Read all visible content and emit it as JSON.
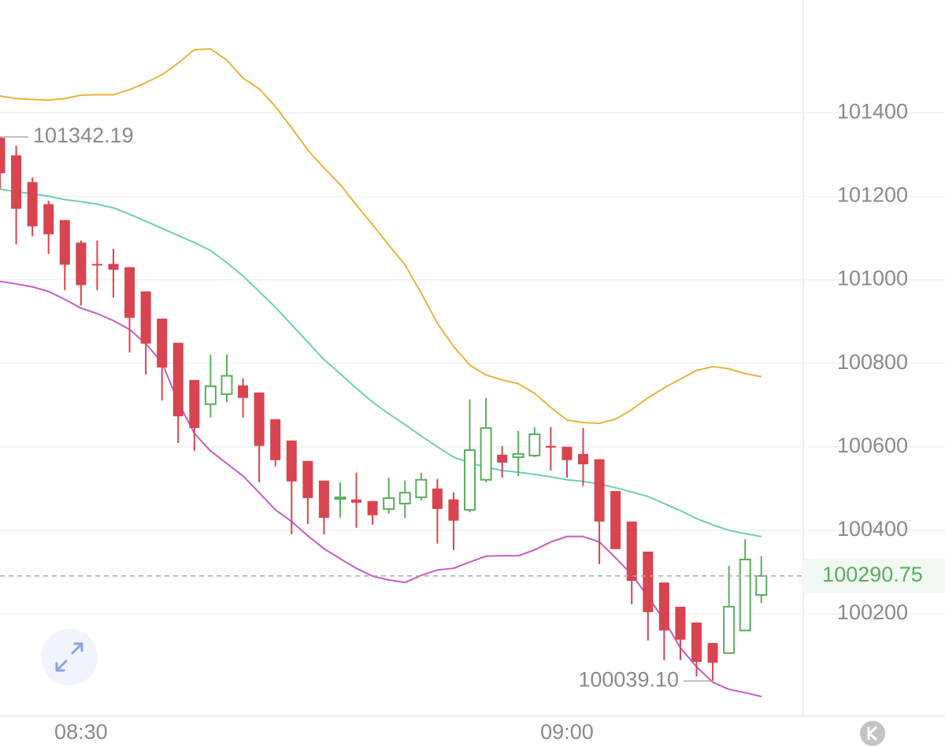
{
  "chart_data": {
    "type": "candlestick",
    "categories": [
      null,
      null,
      null,
      null,
      null,
      "08:30",
      null,
      null,
      null,
      null,
      null,
      null,
      null,
      null,
      null,
      null,
      null,
      null,
      null,
      null,
      null,
      null,
      null,
      null,
      null,
      null,
      null,
      null,
      null,
      null,
      null,
      null,
      null,
      null,
      null,
      "09:00",
      null,
      null,
      null,
      null,
      null,
      null,
      null,
      null,
      null,
      null,
      null,
      null
    ],
    "open": [
      101340,
      101298,
      101234,
      101181,
      101143,
      101089,
      101038,
      101038,
      101030,
      100972,
      100907,
      100849,
      100760,
      100702,
      100726,
      100747,
      100730,
      100666,
      100615,
      100566,
      100519,
      100477,
      100474,
      100470,
      100451,
      100464,
      100479,
      100500,
      100474,
      100449,
      100521,
      100581,
      100575,
      100579,
      100602,
      100600,
      100583,
      100570,
      100494,
      100421,
      100349,
      100275,
      100217,
      100179,
      100130,
      100106,
      100160,
      100245
    ],
    "high": [
      101342.19,
      101321,
      101245,
      101189,
      101143,
      101094,
      101094,
      101074,
      101030,
      100972,
      100907,
      100849,
      100760,
      100821,
      100821,
      100764,
      100730,
      100666,
      100615,
      100566,
      100519,
      100515,
      100538,
      100470,
      100526,
      100519,
      100538,
      100523,
      100491,
      100713,
      100717,
      100602,
      100638,
      100647,
      100647,
      100600,
      100645,
      100570,
      100494,
      100421,
      100349,
      100275,
      100217,
      100179,
      100130,
      100315,
      100379,
      100338
    ],
    "low": [
      101217,
      101085,
      101104,
      101062,
      100975,
      100938,
      100975,
      100957,
      100826,
      100773,
      100711,
      100609,
      100590,
      100670,
      100707,
      100670,
      100515,
      100553,
      100390,
      100415,
      100390,
      100430,
      100406,
      100413,
      100440,
      100430,
      100472,
      100368,
      100353,
      100443,
      100515,
      100526,
      100530,
      100575,
      100543,
      100526,
      100506,
      100319,
      100355,
      100223,
      100136,
      100089,
      100089,
      100050,
      100039.1,
      100106,
      100160,
      100226
    ],
    "close": [
      101255,
      101170,
      101128,
      101109,
      101036,
      100987,
      101036,
      101024,
      100909,
      100847,
      100790,
      100673,
      100645,
      100745,
      100770,
      100717,
      100602,
      100568,
      100517,
      100477,
      100430,
      100479,
      100466,
      100436,
      100477,
      100490,
      100521,
      100451,
      100423,
      100592,
      100645,
      100562,
      100583,
      100630,
      100598,
      100568,
      100558,
      100421,
      100355,
      100279,
      100204,
      100160,
      100138,
      100085,
      100083,
      100217,
      100330,
      100290.75
    ],
    "high_label": "101342.19",
    "low_label": "100039.10",
    "up_color": "#5aad5e",
    "down_color": "#d8444f",
    "bands": [
      {
        "color": "#e8b43c",
        "values": [
          101440,
          101434,
          101432,
          101430,
          101434,
          101442,
          101443,
          101443,
          101455,
          101472,
          101491,
          101519,
          101551,
          101553,
          101526,
          101483,
          101457,
          101415,
          101364,
          101311,
          101268,
          101228,
          101179,
          101132,
          101083,
          101036,
          100968,
          100896,
          100840,
          100796,
          100772,
          100760,
          100751,
          100728,
          100694,
          100664,
          100658,
          100656,
          100666,
          100689,
          100717,
          100741,
          100762,
          100783,
          100792,
          100787,
          100775,
          100768
        ]
      },
      {
        "color": "#6fd0b0",
        "values": [
          101217,
          101211,
          101206,
          101200,
          101192,
          101187,
          101181,
          101172,
          101157,
          101140,
          101123,
          101106,
          101089,
          101070,
          101041,
          101009,
          100972,
          100934,
          100892,
          100851,
          100809,
          100775,
          100740,
          100707,
          100679,
          100653,
          100626,
          100600,
          100575,
          100562,
          100551,
          100543,
          100539,
          100534,
          100528,
          100521,
          100517,
          100511,
          100502,
          100492,
          100481,
          100464,
          100447,
          100428,
          100413,
          100400,
          100392,
          100385
        ]
      },
      {
        "color": "#c85cc0",
        "values": [
          100996,
          100990,
          100983,
          100972,
          100953,
          100932,
          100919,
          100902,
          100881,
          100847,
          100802,
          100707,
          100632,
          100590,
          100560,
          100530,
          100490,
          100449,
          100421,
          100387,
          100356,
          100332,
          100309,
          100290,
          100281,
          100275,
          100292,
          100305,
          100309,
          100324,
          100338,
          100339,
          100339,
          100353,
          100372,
          100385,
          100385,
          100372,
          100334,
          100294,
          100241,
          100185,
          100119,
          100073,
          100036,
          100019,
          100011,
          100002
        ]
      }
    ],
    "ylim": [
      99955,
      101670
    ],
    "yticks": [
      100200,
      100400,
      100600,
      100800,
      101000,
      101200,
      101400
    ],
    "grid": true
  }
}
